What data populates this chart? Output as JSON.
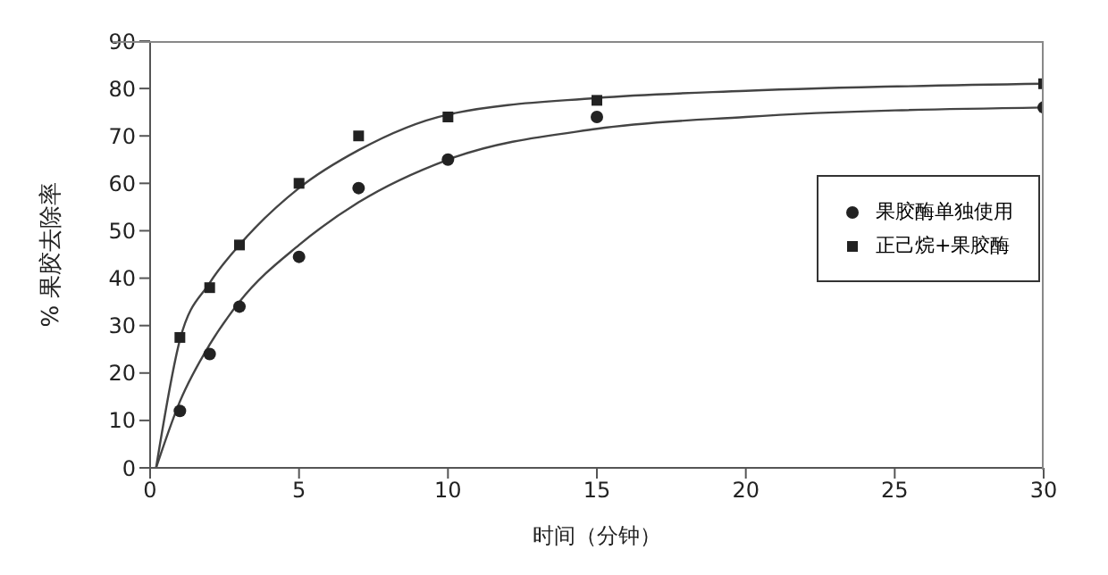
{
  "chart_data": {
    "type": "scatter",
    "xlabel": "时间（分钟）",
    "ylabel": "% 果胶去除率",
    "xlim": [
      0,
      30
    ],
    "xticks": [
      0,
      5,
      10,
      15,
      20,
      25,
      30
    ],
    "ylim": [
      0,
      90
    ],
    "yticks": [
      0,
      10,
      20,
      30,
      40,
      50,
      60,
      70,
      80,
      90
    ],
    "grid": false,
    "legend": "right",
    "series": [
      {
        "name": "果胶酶单独使用",
        "marker": "circle",
        "color": "#222222",
        "x": [
          1,
          2,
          3,
          5,
          7,
          10,
          15,
          30
        ],
        "values": [
          12,
          24,
          34,
          44.5,
          59,
          65,
          74,
          76
        ]
      },
      {
        "name": "正己烷+果胶酶",
        "marker": "square",
        "color": "#222222",
        "x": [
          1,
          2,
          3,
          5,
          7,
          10,
          15,
          30
        ],
        "values": [
          27.5,
          38,
          47,
          60,
          70,
          74,
          77.5,
          81
        ]
      },
      {
        "type": "line",
        "marker": "none",
        "color": "#444444",
        "x": [
          0.2,
          1,
          2,
          3,
          5,
          7,
          10,
          15,
          20,
          30
        ],
        "values": [
          0,
          14,
          26,
          35,
          47,
          56,
          65,
          71.5,
          74,
          76
        ]
      },
      {
        "type": "line",
        "marker": "none",
        "color": "#444444",
        "x": [
          0.2,
          1,
          2,
          3,
          5,
          7,
          10,
          15,
          20,
          30
        ],
        "values": [
          0,
          27,
          39,
          47,
          59,
          67,
          74.5,
          78,
          79.5,
          81
        ]
      }
    ]
  }
}
